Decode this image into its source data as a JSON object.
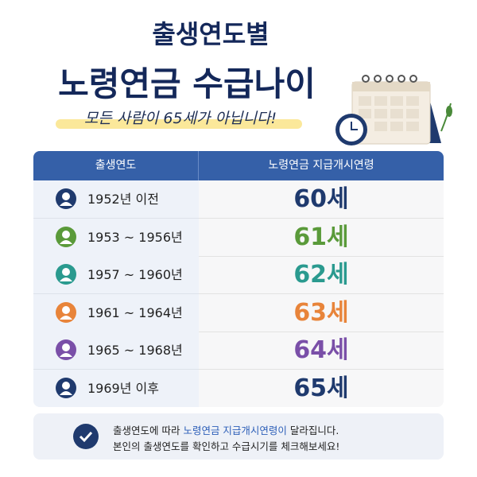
{
  "header": {
    "title_line1": "출생연도별",
    "title_line2": "노령연금 수급나이",
    "subtitle": "모든 사람이 65세가 아닙니다!"
  },
  "table": {
    "columns": [
      "출생연도",
      "노령연금 지급개시연령"
    ],
    "rows": [
      {
        "birth": "1952년 이전",
        "age": "60세",
        "color": "#1f3a6e"
      },
      {
        "birth": "1953 ~ 1956년",
        "age": "61세",
        "color": "#5a9a3a"
      },
      {
        "birth": "1957 ~ 1960년",
        "age": "62세",
        "color": "#2a9a8f"
      },
      {
        "birth": "1961 ~ 1964년",
        "age": "63세",
        "color": "#e8843a"
      },
      {
        "birth": "1965 ~ 1968년",
        "age": "64세",
        "color": "#7a4fa8"
      },
      {
        "birth": "1969년 이후",
        "age": "65세",
        "color": "#1f3a6e"
      }
    ]
  },
  "note": {
    "line1_pre": "출생연도에 따라 ",
    "line1_highlight": "노령연금 지급개시연령이",
    "line1_post": " 달라집니다.",
    "line2": "본인의 출생연도를 확인하고 수급시기를 체크해보세요!"
  }
}
